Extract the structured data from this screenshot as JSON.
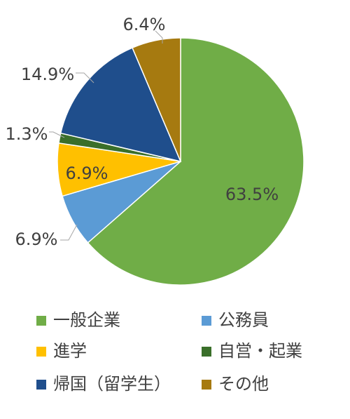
{
  "chart_data": {
    "type": "pie",
    "categories": [
      "一般企業",
      "公務員",
      "進学",
      "自営・起業",
      "帰国（留学生）",
      "その他"
    ],
    "values": [
      63.5,
      6.9,
      6.9,
      1.3,
      14.9,
      6.4
    ],
    "data_labels": [
      "63.5%",
      "6.9%",
      "6.9%",
      "1.3%",
      "14.9%",
      "6.4%"
    ],
    "colors": [
      "#70AD47",
      "#5B9BD5",
      "#FFC000",
      "#3A6F2A",
      "#1F4E8C",
      "#A67A10"
    ],
    "legend_placement": "bottom",
    "legend_columns": 2
  }
}
